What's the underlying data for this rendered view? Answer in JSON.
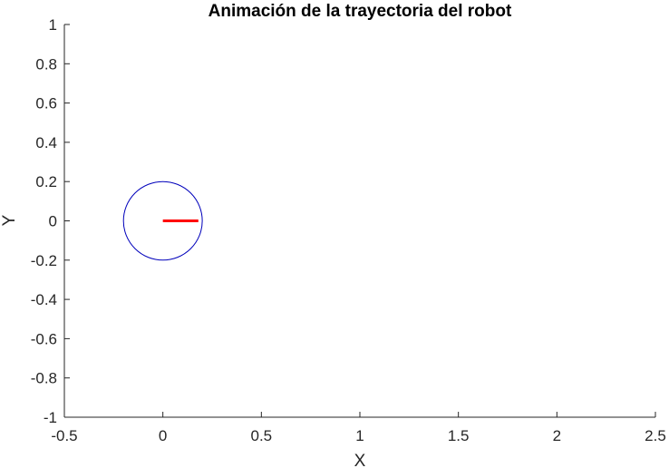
{
  "chart_data": {
    "type": "line",
    "title": "Animación de la trayectoria del robot",
    "xlabel": "X",
    "ylabel": "Y",
    "xlim": [
      -0.5,
      2.5
    ],
    "ylim": [
      -1,
      1
    ],
    "xticks": [
      -0.5,
      0,
      0.5,
      1,
      1.5,
      2,
      2.5
    ],
    "xtick_labels": [
      "-0.5",
      "0",
      "0.5",
      "1",
      "1.5",
      "2",
      "2.5"
    ],
    "yticks": [
      -1,
      -0.8,
      -0.6,
      -0.4,
      -0.2,
      0,
      0.2,
      0.4,
      0.6,
      0.8,
      1
    ],
    "ytick_labels": [
      "-1",
      "-0.8",
      "-0.6",
      "-0.4",
      "-0.2",
      "0",
      "0.2",
      "0.4",
      "0.6",
      "0.8",
      "1"
    ],
    "grid": false,
    "box": "left-bottom axes only",
    "robot": {
      "center": [
        0,
        0
      ],
      "radius": 0.2,
      "circle_color": "#0000bb",
      "heading": {
        "x": [
          0,
          0.18
        ],
        "y": [
          0,
          0
        ],
        "color": "#ff0000"
      }
    }
  }
}
